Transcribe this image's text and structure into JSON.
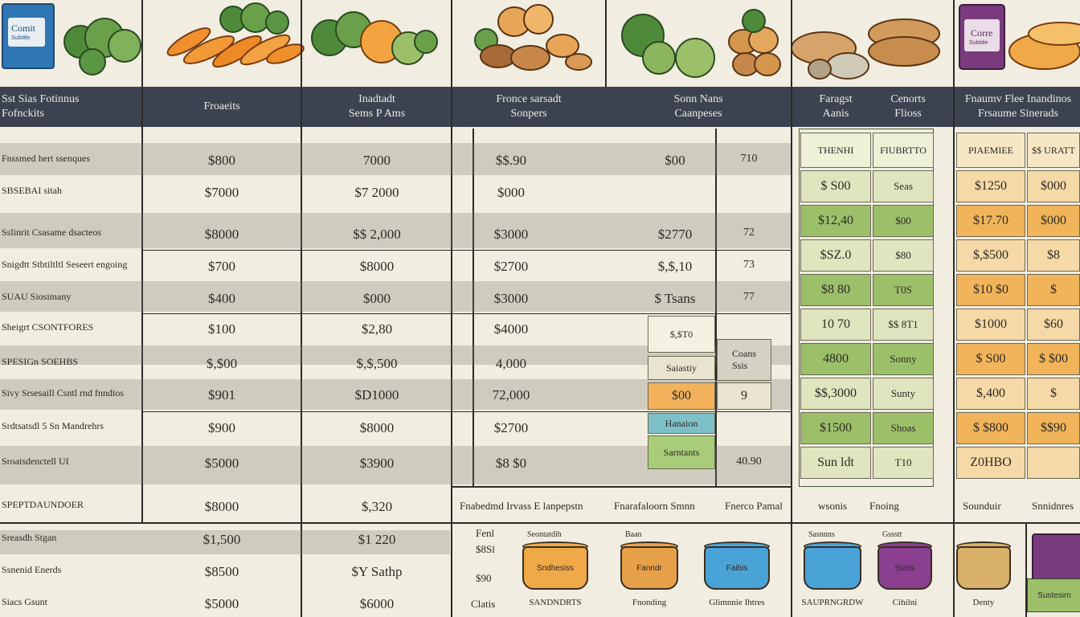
{
  "colors": {
    "header_bar": "#3c4250",
    "background": "#f1ede0",
    "green_light": "#dfe5bf",
    "green_dark": "#9cc06a",
    "orange_light": "#f5d9a6",
    "orange_dark": "#f1b45a"
  },
  "illustrations": {
    "pack_left_label": "Comit",
    "pack_left_sub": "Subtitle",
    "pack_right_label": "Corre",
    "pack_right_sub": "Subtitle",
    "icons": [
      "broccoli-icon",
      "carrot-icon",
      "vegetables-icon",
      "nuts-squash-icon",
      "greens-icon",
      "potato-icon",
      "bread-icon",
      "snack-pack-icon"
    ]
  },
  "header": {
    "col0": [
      "Sst Sias Fotinnus",
      "Fofnckits"
    ],
    "col1": [
      "Froaeits"
    ],
    "col2": [
      "Inadtadt",
      "Sems P Ams"
    ],
    "col3": [
      "Fronce sarsadt",
      "Sonpers"
    ],
    "col4": [
      "Sonn Nans",
      "Caanpeses"
    ],
    "col5a": [
      "Faragst",
      "Aanis"
    ],
    "col5b": [
      "Cenorts",
      "Flioss"
    ],
    "col6": [
      "Fnaumv Flee Inandinos",
      "Frsaume Sinerads"
    ]
  },
  "rows": [
    {
      "label": "Fnssmed hert ssenques",
      "c1": "$800",
      "c2": "7000",
      "c3": "$$.90",
      "c4": "$00",
      "c4b": "710"
    },
    {
      "label": "SBSEBAI sitah",
      "c1": "$7000",
      "c2": "$7 2000",
      "c3": "$000",
      "c4": "",
      "c4b": ""
    },
    {
      "label": "Sslinrit Csasame dsacteos",
      "c1": "$8000",
      "c2": "$$ 2,000",
      "c3": "$3000",
      "c4": "$2770",
      "c4b": "72"
    },
    {
      "label": "Snigdtt Stbtiltltl Seseert engoing",
      "c1": "$700",
      "c2": "$8000",
      "c3": "$2700",
      "c4": "$,$,10",
      "c4b": "73"
    },
    {
      "label": "SUAU Siosimany",
      "c1": "$400",
      "c2": "$000",
      "c3": "$3000",
      "c4": "$ Tsans",
      "c4b": "77"
    },
    {
      "label": "Sheigrt CSONTFORES",
      "c1": "$100",
      "c2": "$2,80",
      "c3": "$4000",
      "c4": "",
      "c4b": ""
    },
    {
      "label": "SPESIGn SOEHBS",
      "c1": "$,$00",
      "c2": "$,$,500",
      "c3": "4,000",
      "c4": "",
      "c4b": ""
    },
    {
      "label": "Sivy Srsesaill Csntl rnd fnndios",
      "c1": "$901",
      "c2": "$D1000",
      "c3": "72,000",
      "c4": "",
      "c4b": ""
    },
    {
      "label": "Srdtsatsdl 5 Sn Mandrehrs",
      "c1": "$900",
      "c2": "$8000",
      "c3": "$2700",
      "c4": "",
      "c4b": ""
    },
    {
      "label": "Sroatsdenctell UI",
      "c1": "$5000",
      "c2": "$3900",
      "c3": "$8 $0",
      "c4": "",
      "c4b": "40.90"
    },
    {
      "label": "SPEPTDAUNDOER",
      "c1": "$8000",
      "c2": "$,320",
      "c3": "",
      "c4": "",
      "c4b": ""
    },
    {
      "label": "Sreasdh Stgan",
      "c1": "$1,500",
      "c2": "$1 220",
      "c3": "",
      "c4": "",
      "c4b": ""
    },
    {
      "label": "Ssnenid Enerds",
      "c1": "$8500",
      "c2": "$Y Sathp",
      "c3": "",
      "c4": "",
      "c4b": ""
    },
    {
      "label": "Siacs Gsunt",
      "c1": "$5000",
      "c2": "$6000",
      "c3": "",
      "c4": "",
      "c4b": ""
    }
  ],
  "mid_boxes": {
    "b1": "$,$T0",
    "b2": "Saiastiy",
    "b3": "$00",
    "b4": "Hanaion",
    "b5": "Sarntants",
    "side1": "Coans\nSsis",
    "side2": "9"
  },
  "green_table": {
    "headers": [
      "THENHI",
      "FIUBRTTO"
    ],
    "rows": [
      [
        "$ S00",
        "Seas"
      ],
      [
        "$12,40",
        "$00"
      ],
      [
        "$SZ.0",
        "$80"
      ],
      [
        "$8 80",
        "T0S"
      ],
      [
        "10 70",
        "$$ 8T1"
      ],
      [
        "4800",
        "Sonny"
      ],
      [
        "$$,3000",
        "Sunty"
      ],
      [
        "$1500",
        "Shoas"
      ],
      [
        "Sun ldt",
        "T10"
      ]
    ]
  },
  "orange_table": {
    "headers": [
      "PIAEMIEE",
      "$$ URATT"
    ],
    "rows": [
      [
        "$1250",
        "$000"
      ],
      [
        "$17.70",
        "$000"
      ],
      [
        "$,$500",
        "$8"
      ],
      [
        "$10 $0",
        "$"
      ],
      [
        "$1000",
        "$60"
      ],
      [
        "$ S00",
        "$ $00"
      ],
      [
        "$,400",
        "$"
      ],
      [
        "$ $800",
        "$$90"
      ],
      [
        "Z0HBO",
        ""
      ]
    ]
  },
  "footer": {
    "labels_row": [
      "Fnabedmd Irvass E lanpepstn",
      "Fnarafaloorn Smnn",
      "Fnerco Pamal",
      "wsonis",
      "Fnoing",
      "Sounduir",
      "Snnidnres"
    ],
    "left_small": [
      "Fenl",
      "$8Sl",
      "$90",
      "Clatis"
    ],
    "tub_captions": [
      "SANDNDRTS",
      "Fnonding",
      "Glimnnie Ihtres",
      "SAUPRNGRDW",
      "Cihilni",
      "Denty"
    ],
    "tub_labels": [
      "Sndhesiss",
      "Fanndr",
      "Faibis",
      "",
      "Ssnts",
      ""
    ],
    "tub_titles": [
      "Seontatdih",
      "Baan",
      "",
      "Sasnnns",
      "Gssstt",
      ""
    ],
    "right_pack": "Sustesirn"
  }
}
